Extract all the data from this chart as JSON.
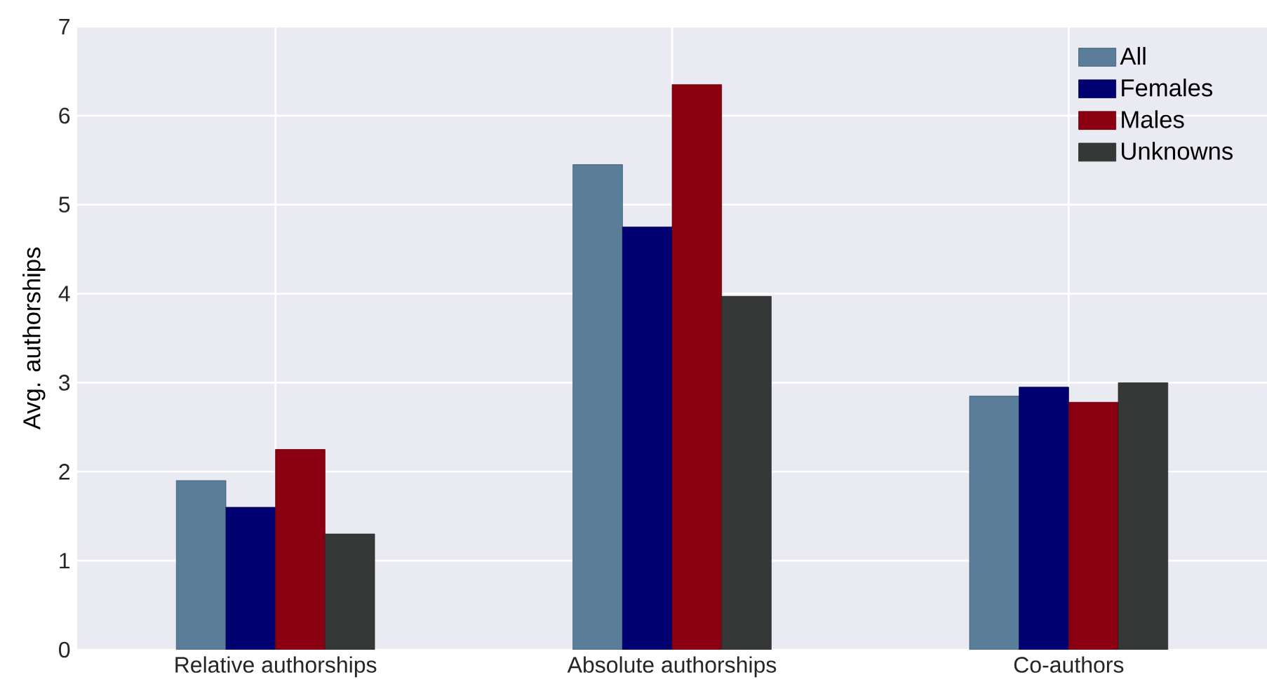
{
  "chart_data": {
    "type": "bar",
    "ylabel": "Avg. authorships",
    "categories": [
      "Relative authorships",
      "Absolute authorships",
      "Co-authors"
    ],
    "series": [
      {
        "name": "All",
        "color": "#5a7d9a",
        "values": [
          1.9,
          5.45,
          2.85
        ]
      },
      {
        "name": "Females",
        "color": "#000070",
        "values": [
          1.6,
          4.75,
          2.95
        ]
      },
      {
        "name": "Males",
        "color": "#8b0010",
        "values": [
          2.25,
          6.35,
          2.78
        ]
      },
      {
        "name": "Unknowns",
        "color": "#363838",
        "values": [
          1.3,
          3.97,
          3.0
        ]
      }
    ],
    "ylim": [
      0,
      7
    ],
    "yticks": [
      0,
      1,
      2,
      3,
      4,
      5,
      6,
      7
    ],
    "grid": true,
    "legend": "top right"
  }
}
